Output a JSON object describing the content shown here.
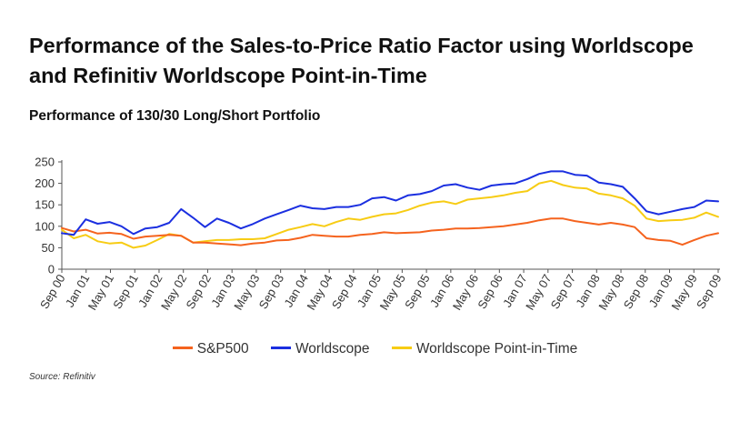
{
  "title": "Performance of the Sales-to-Price Ratio Factor using Worldscope and Refinitiv Worldscope Point-in-Time",
  "subtitle": "Performance of 130/30 Long/Short Portfolio",
  "source": "Source: Refinitiv",
  "chart_data": {
    "type": "line",
    "title": "Performance of 130/30 Long/Short Portfolio",
    "xlabel": "",
    "ylabel": "",
    "ylim": [
      0,
      250
    ],
    "yticks": [
      0,
      50,
      100,
      150,
      200,
      250
    ],
    "x_tick_labels": [
      "Sep 00",
      "Jan 01",
      "May 01",
      "Sep 01",
      "Jan 02",
      "May 02",
      "Sep 02",
      "Jan 03",
      "May 03",
      "Sep 03",
      "Jan 04",
      "May 04",
      "Sep 04",
      "Jan 05",
      "May 05",
      "Sep 05",
      "Jan 06",
      "May 06",
      "Sep 06",
      "Jan 07",
      "May 07",
      "Sep 07",
      "Jan 08",
      "May 08",
      "Sep 08",
      "Jan 09",
      "May 09",
      "Sep 09"
    ],
    "grid": false,
    "legend_position": "bottom",
    "x": [
      "Sep 00",
      "Nov 00",
      "Jan 01",
      "Mar 01",
      "May 01",
      "Jul 01",
      "Sep 01",
      "Nov 01",
      "Jan 02",
      "Mar 02",
      "May 02",
      "Jul 02",
      "Sep 02",
      "Nov 02",
      "Jan 03",
      "Mar 03",
      "May 03",
      "Jul 03",
      "Sep 03",
      "Nov 03",
      "Jan 04",
      "Mar 04",
      "May 04",
      "Jul 04",
      "Sep 04",
      "Nov 04",
      "Jan 05",
      "Mar 05",
      "May 05",
      "Jul 05",
      "Sep 05",
      "Nov 05",
      "Jan 06",
      "Mar 06",
      "May 06",
      "Jul 06",
      "Sep 06",
      "Nov 06",
      "Jan 07",
      "Mar 07",
      "May 07",
      "Jul 07",
      "Sep 07",
      "Nov 07",
      "Jan 08",
      "Mar 08",
      "May 08",
      "Jul 08",
      "Sep 08",
      "Nov 08",
      "Jan 09",
      "Mar 09",
      "May 09",
      "Jul 09",
      "Sep 09",
      "Oct 09"
    ],
    "series": [
      {
        "name": "S&P500",
        "color": "#f5631e",
        "values": [
          96,
          88,
          92,
          83,
          85,
          82,
          71,
          76,
          78,
          80,
          78,
          62,
          62,
          60,
          58,
          56,
          60,
          62,
          67,
          68,
          73,
          80,
          78,
          76,
          76,
          80,
          82,
          86,
          84,
          85,
          86,
          90,
          92,
          95,
          95,
          96,
          98,
          100,
          104,
          108,
          114,
          118,
          118,
          112,
          108,
          104,
          108,
          104,
          98,
          72,
          68,
          66,
          57,
          68,
          78,
          84
        ]
      },
      {
        "name": "Worldscope",
        "color": "#1b2fe0",
        "values": [
          84,
          80,
          116,
          106,
          110,
          100,
          82,
          95,
          98,
          108,
          140,
          120,
          98,
          118,
          108,
          95,
          105,
          118,
          128,
          138,
          148,
          142,
          140,
          145,
          145,
          150,
          165,
          168,
          160,
          172,
          175,
          182,
          195,
          198,
          190,
          185,
          195,
          198,
          200,
          210,
          222,
          228,
          228,
          220,
          218,
          202,
          198,
          192,
          165,
          135,
          128,
          134,
          140,
          145,
          160,
          158
        ]
      },
      {
        "name": "Worldscope Point-in-Time",
        "color": "#f7cc14",
        "values": [
          92,
          72,
          80,
          65,
          60,
          62,
          50,
          55,
          68,
          82,
          78,
          62,
          65,
          68,
          68,
          70,
          70,
          72,
          82,
          92,
          98,
          105,
          100,
          110,
          118,
          115,
          122,
          128,
          130,
          138,
          148,
          155,
          158,
          152,
          162,
          165,
          168,
          172,
          178,
          182,
          200,
          206,
          196,
          190,
          188,
          176,
          172,
          165,
          148,
          118,
          112,
          114,
          115,
          120,
          132,
          122
        ]
      }
    ]
  },
  "legend": [
    {
      "label": "S&P500",
      "color": "#f5631e"
    },
    {
      "label": "Worldscope",
      "color": "#1b2fe0"
    },
    {
      "label": "Worldscope Point-in-Time",
      "color": "#f7cc14"
    }
  ]
}
